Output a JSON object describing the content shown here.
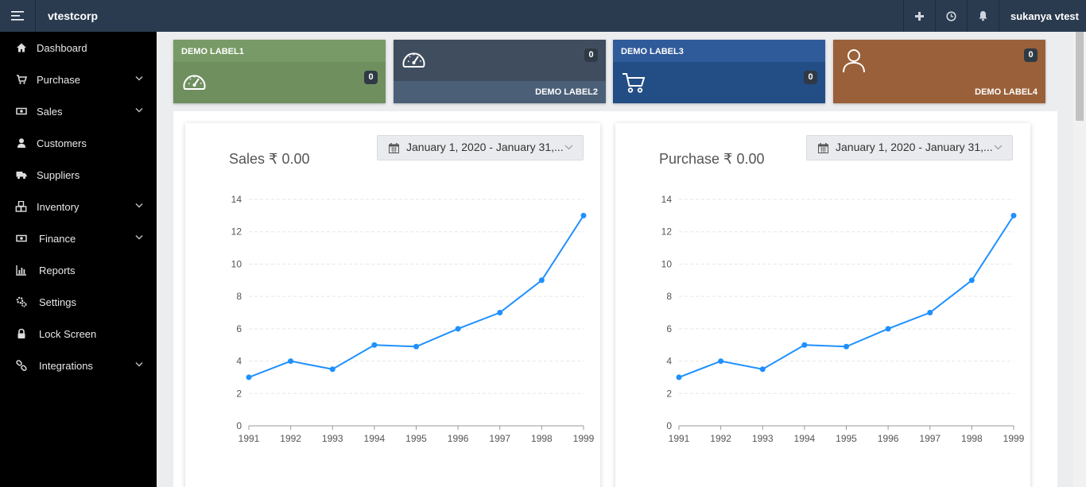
{
  "header": {
    "brand": "vtestcorp",
    "user": "sukanya vtest",
    "icons": [
      "hamburger-icon",
      "plus-icon",
      "clock-icon",
      "bell-icon"
    ]
  },
  "sidebar": {
    "items": [
      {
        "label": "Dashboard",
        "icon": "home-icon",
        "expandable": false
      },
      {
        "label": "Purchase",
        "icon": "cart-icon",
        "expandable": true
      },
      {
        "label": "Sales",
        "icon": "money-icon",
        "expandable": true
      },
      {
        "label": "Customers",
        "icon": "user-icon",
        "expandable": false
      },
      {
        "label": "Suppliers",
        "icon": "truck-icon",
        "expandable": false
      },
      {
        "label": "Inventory",
        "icon": "cubes-icon",
        "expandable": true
      },
      {
        "label": "Finance",
        "icon": "money-icon",
        "expandable": true
      },
      {
        "label": "Reports",
        "icon": "bar-chart-icon",
        "expandable": false
      },
      {
        "label": "Settings",
        "icon": "gears-icon",
        "expandable": false
      },
      {
        "label": "Lock Screen",
        "icon": "lock-icon",
        "expandable": false
      },
      {
        "label": "Integrations",
        "icon": "link-icon",
        "expandable": true
      }
    ]
  },
  "tiles": [
    {
      "label": "DEMO LABEL1",
      "count": "0",
      "icon": "speedometer-icon",
      "color": "#6f8f5f"
    },
    {
      "label": "DEMO LABEL2",
      "count": "0",
      "icon": "speedometer-icon",
      "color": "#3f4d5e"
    },
    {
      "label": "DEMO LABEL3",
      "count": "0",
      "icon": "cart-icon",
      "color": "#224d85"
    },
    {
      "label": "DEMO LABEL4",
      "count": "0",
      "icon": "user-icon",
      "color": "#9a6039"
    }
  ],
  "cards": [
    {
      "title": "Sales ₹ 0.00",
      "date_range": "January 1, 2020 - January 31,..."
    },
    {
      "title": "Purchase ₹ 0.00",
      "date_range": "January 1, 2020 - January 31,..."
    }
  ],
  "chart_data": [
    {
      "type": "line",
      "x": [
        "1991",
        "1992",
        "1993",
        "1994",
        "1995",
        "1996",
        "1997",
        "1998",
        "1999"
      ],
      "series": [
        {
          "values": [
            3,
            4,
            3.5,
            5,
            4.9,
            6,
            7,
            9,
            13
          ]
        }
      ],
      "y_ticks": [
        0,
        2,
        4,
        6,
        8,
        10,
        12,
        14
      ],
      "ylim": [
        0,
        14
      ],
      "grid": true,
      "color": "#1e90ff"
    },
    {
      "type": "line",
      "x": [
        "1991",
        "1992",
        "1993",
        "1994",
        "1995",
        "1996",
        "1997",
        "1998",
        "1999"
      ],
      "series": [
        {
          "values": [
            3,
            4,
            3.5,
            5,
            4.9,
            6,
            7,
            9,
            13
          ]
        }
      ],
      "y_ticks": [
        0,
        2,
        4,
        6,
        8,
        10,
        12,
        14
      ],
      "ylim": [
        0,
        14
      ],
      "grid": true,
      "color": "#1e90ff"
    }
  ]
}
